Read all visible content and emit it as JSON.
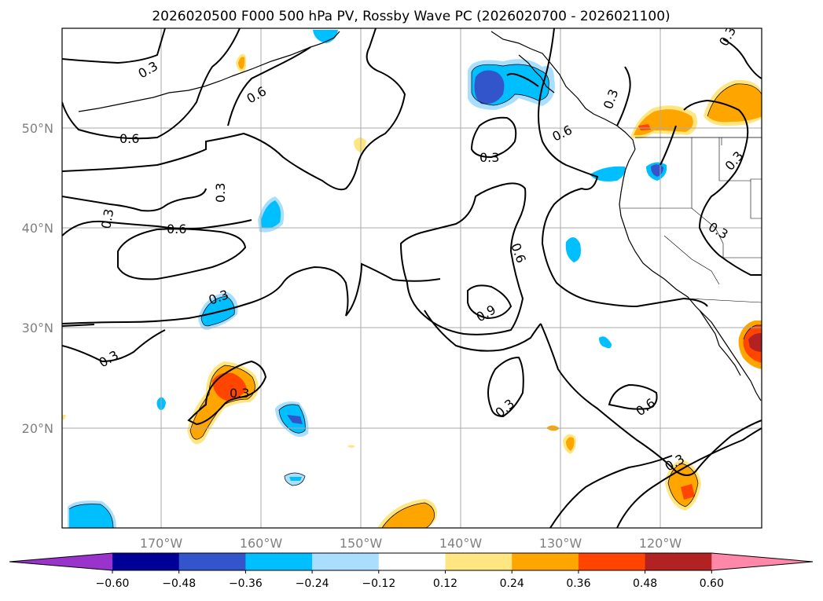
{
  "title": "2026020500 F000 500 hPa PV, Rossby Wave PC (2026020700 - 2026021100)",
  "lat_labels": [
    "50°N",
    "40°N",
    "30°N",
    "20°N"
  ],
  "lon_labels": [
    "170°W",
    "160°W",
    "150°W",
    "140°W",
    "130°W",
    "120°W"
  ],
  "contour_labels": [
    "0.3",
    "0.6",
    "0.6",
    "0.3",
    "0.3",
    "0.6",
    "0.3",
    "0.3",
    "0.3",
    "0.6",
    "0.3",
    "0.3",
    "0.6",
    "0.3",
    "0.9",
    "0.3",
    "0.3",
    "0.6",
    "0.3",
    "0.3"
  ],
  "colorbar": {
    "ticks": [
      "−0.60",
      "−0.48",
      "−0.36",
      "−0.24",
      "−0.12",
      "0.12",
      "0.24",
      "0.36",
      "0.48",
      "0.60"
    ],
    "colors": [
      "#9933cc",
      "#000099",
      "#3355cc",
      "#00bfff",
      "#aadeff",
      "#ffffff",
      "#ffe680",
      "#ffa500",
      "#ff4500",
      "#b22222",
      "#ff88aa"
    ]
  },
  "colors": {
    "light_blue": "#aadeff",
    "blue": "#00bfff",
    "royal_blue": "#3355cc",
    "yellow": "#ffe680",
    "orange": "#ffa500",
    "red_orange": "#ff4500",
    "dark_red": "#b22222",
    "grid": "#aaaaaa"
  }
}
